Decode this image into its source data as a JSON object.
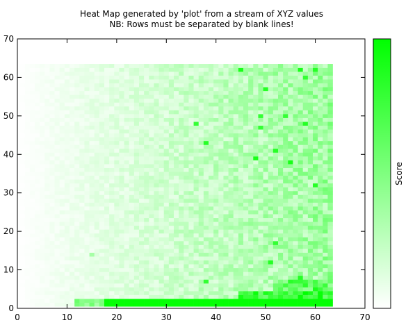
{
  "chart_data": {
    "type": "heatmap",
    "title_line1": "Heat Map generated by 'plot' from a stream of XYZ values",
    "title_line2": "NB: Rows must be separated by blank lines!",
    "xlabel": "",
    "ylabel": "",
    "xlim": [
      0,
      70
    ],
    "ylim": [
      0,
      70
    ],
    "x_ticks": [
      "0",
      "10",
      "20",
      "30",
      "40",
      "50",
      "60",
      "70"
    ],
    "y_ticks": [
      "0",
      "10",
      "20",
      "30",
      "40",
      "50",
      "60",
      "70"
    ],
    "colorbar_label": "Score",
    "grid": false,
    "grid_x_range": [
      1,
      63
    ],
    "grid_y_range": [
      1,
      63
    ],
    "cell_values_formula": "value ≈ x/63 with random noise; bottom rows (y≈1–3) near maximum for x > 18; isolated hotspots",
    "colors": {
      "low": "#ffffff",
      "high": "#00ff00"
    },
    "hotspots": [
      {
        "x": 15,
        "y": 14,
        "level": 0.35
      },
      {
        "x": 36,
        "y": 48,
        "level": 0.8
      },
      {
        "x": 38,
        "y": 43,
        "level": 0.85
      },
      {
        "x": 38,
        "y": 7,
        "level": 0.8
      },
      {
        "x": 45,
        "y": 62,
        "level": 0.9
      },
      {
        "x": 49,
        "y": 50,
        "level": 0.8
      },
      {
        "x": 49,
        "y": 47,
        "level": 0.8
      },
      {
        "x": 50,
        "y": 57,
        "level": 0.85
      },
      {
        "x": 48,
        "y": 39,
        "level": 0.9
      },
      {
        "x": 52,
        "y": 41,
        "level": 0.85
      },
      {
        "x": 55,
        "y": 38,
        "level": 0.9
      },
      {
        "x": 57,
        "y": 62,
        "level": 0.9
      },
      {
        "x": 60,
        "y": 62,
        "level": 0.85
      },
      {
        "x": 58,
        "y": 60,
        "level": 0.8
      },
      {
        "x": 60,
        "y": 32,
        "level": 0.85
      },
      {
        "x": 52,
        "y": 17,
        "level": 0.8
      },
      {
        "x": 51,
        "y": 12,
        "level": 0.85
      },
      {
        "x": 57,
        "y": 8,
        "level": 0.85
      },
      {
        "x": 60,
        "y": 5,
        "level": 0.9
      },
      {
        "x": 58,
        "y": 48,
        "level": 0.85
      },
      {
        "x": 54,
        "y": 50,
        "level": 0.8
      }
    ]
  }
}
